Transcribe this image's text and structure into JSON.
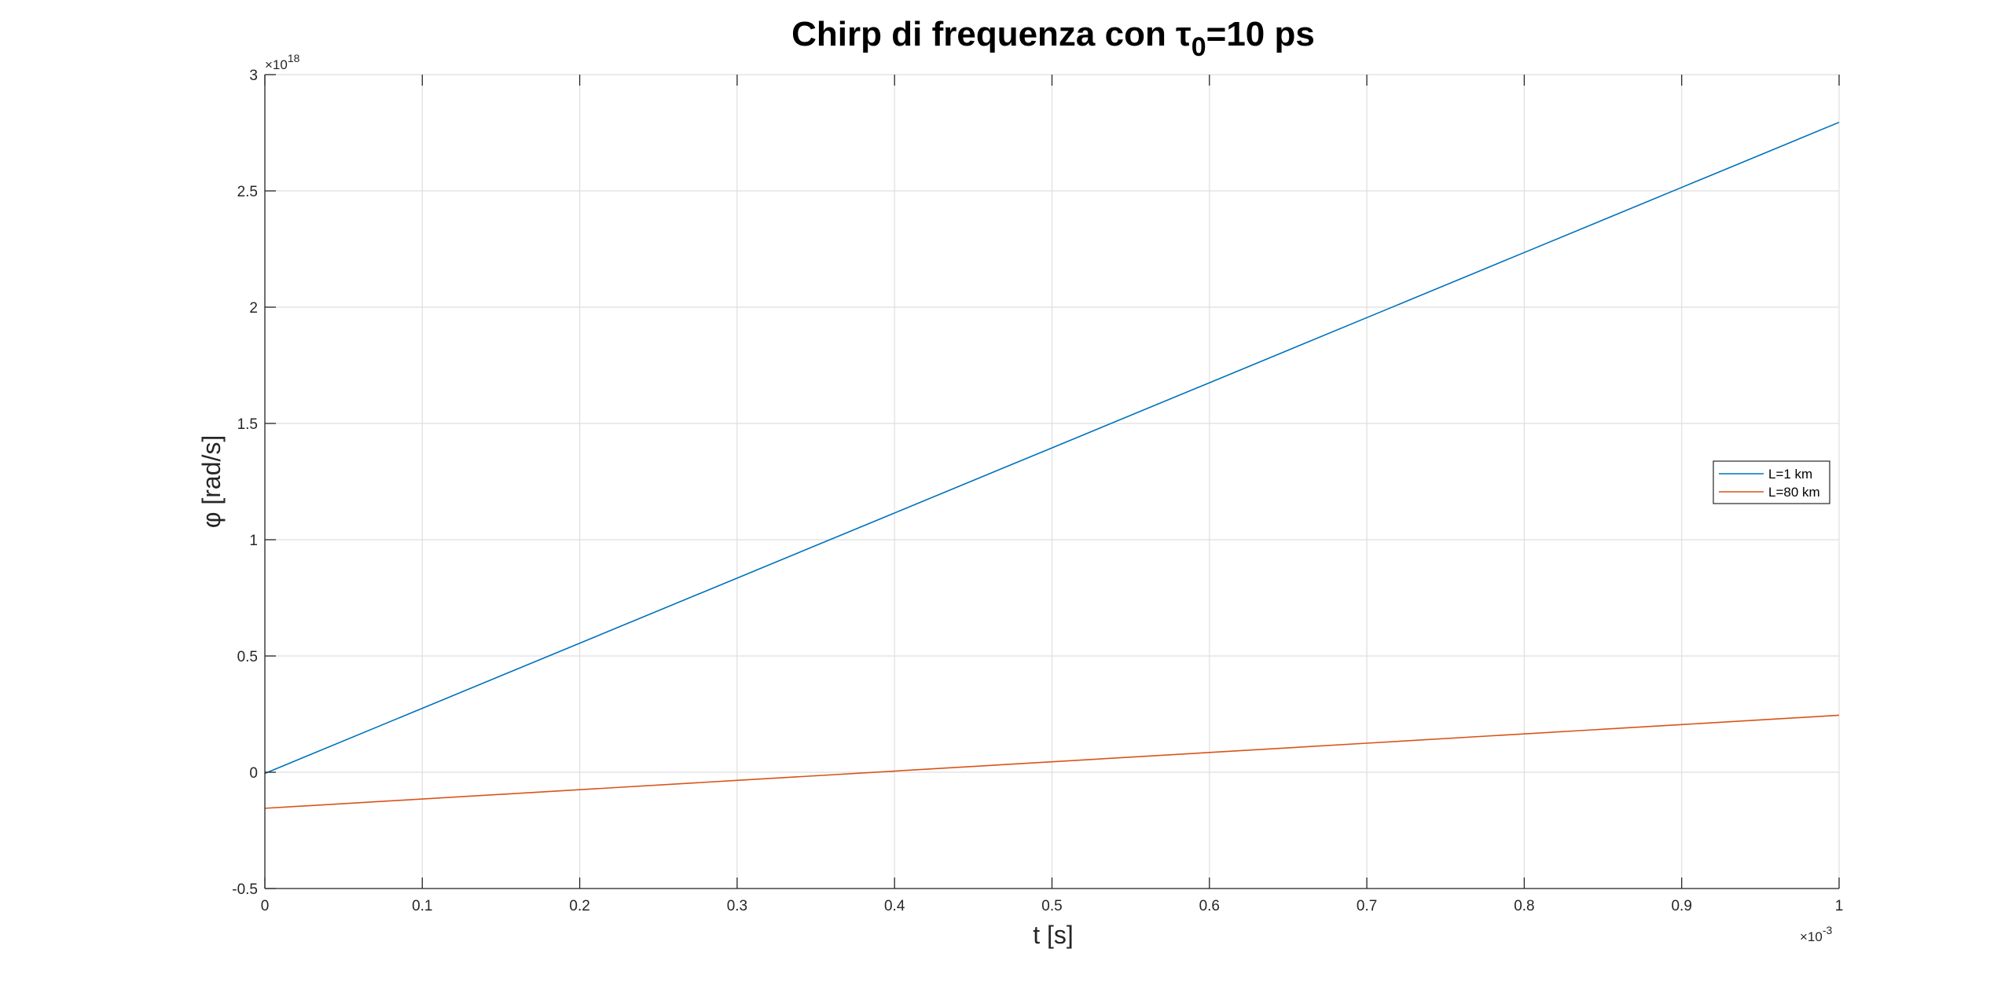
{
  "chart_data": {
    "type": "line",
    "title": {
      "main": "Chirp di frequenza con τ",
      "subscript": "0",
      "suffix": "=10 ps"
    },
    "xlabel": "t [s]",
    "ylabel": "φ [rad/s]",
    "x_multiplier": {
      "base": "×10",
      "exponent": "-3"
    },
    "y_multiplier": {
      "base": "×10",
      "exponent": "18"
    },
    "xlim": [
      0,
      1
    ],
    "ylim": [
      -0.5,
      3
    ],
    "x_ticks": [
      {
        "value": 0,
        "label": "0"
      },
      {
        "value": 0.1,
        "label": "0.1"
      },
      {
        "value": 0.2,
        "label": "0.2"
      },
      {
        "value": 0.3,
        "label": "0.3"
      },
      {
        "value": 0.4,
        "label": "0.4"
      },
      {
        "value": 0.5,
        "label": "0.5"
      },
      {
        "value": 0.6,
        "label": "0.6"
      },
      {
        "value": 0.7,
        "label": "0.7"
      },
      {
        "value": 0.8,
        "label": "0.8"
      },
      {
        "value": 0.9,
        "label": "0.9"
      },
      {
        "value": 1,
        "label": "1"
      }
    ],
    "y_ticks": [
      {
        "value": -0.5,
        "label": "-0.5"
      },
      {
        "value": 0,
        "label": "0"
      },
      {
        "value": 0.5,
        "label": "0.5"
      },
      {
        "value": 1,
        "label": "1"
      },
      {
        "value": 1.5,
        "label": "1.5"
      },
      {
        "value": 2,
        "label": "2"
      },
      {
        "value": 2.5,
        "label": "2.5"
      },
      {
        "value": 3,
        "label": "3"
      }
    ],
    "grid": true,
    "legend_position": "right",
    "series": [
      {
        "name": "L=1 km",
        "color": "#0072BD",
        "x": [
          0,
          0.1,
          0.2,
          0.3,
          0.4,
          0.5,
          0.6,
          0.7,
          0.8,
          0.9,
          1
        ],
        "y": [
          -0.005,
          0.275,
          0.555,
          0.835,
          1.115,
          1.395,
          1.675,
          1.955,
          2.235,
          2.515,
          2.795
        ]
      },
      {
        "name": "L=80 km",
        "color": "#D95319",
        "x": [
          0,
          0.1,
          0.2,
          0.3,
          0.4,
          0.5,
          0.6,
          0.7,
          0.8,
          0.9,
          1
        ],
        "y": [
          -0.155,
          -0.115,
          -0.075,
          -0.035,
          0.005,
          0.045,
          0.085,
          0.125,
          0.165,
          0.205,
          0.245
        ]
      }
    ]
  }
}
